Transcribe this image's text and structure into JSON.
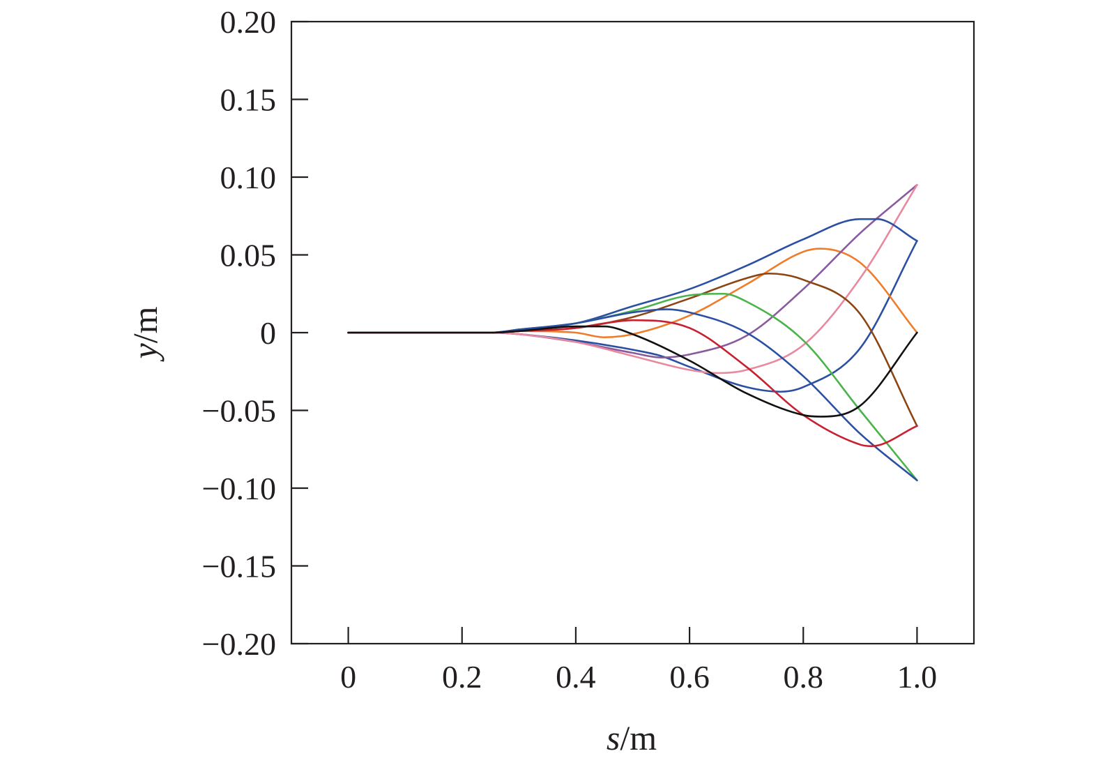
{
  "chart_data": {
    "type": "line",
    "xlabel": {
      "var": "s",
      "unit": "/m"
    },
    "ylabel": {
      "var": "y",
      "unit": "/m"
    },
    "xlim": [
      -0.1,
      1.1
    ],
    "ylim": [
      -0.2,
      0.2
    ],
    "xticks": [
      0,
      0.2,
      0.4,
      0.6,
      0.8,
      1.0
    ],
    "xtick_labels": [
      "0",
      "0.2",
      "0.4",
      "0.6",
      "0.8",
      "1.0"
    ],
    "yticks": [
      0.2,
      0.15,
      0.1,
      0.05,
      0,
      -0.05,
      -0.1,
      -0.15,
      -0.2
    ],
    "ytick_labels": [
      "0.20",
      "0.15",
      "0.10",
      "0.05",
      "0",
      "−0.05",
      "−0.10",
      "−0.15",
      "−0.20"
    ],
    "grid": false,
    "legend": "none",
    "series": [
      {
        "color": "#2b4fa2",
        "points": [
          [
            0,
            0
          ],
          [
            0.25,
            0
          ],
          [
            0.3,
            -0.001
          ],
          [
            0.4,
            -0.005
          ],
          [
            0.5,
            -0.011
          ],
          [
            0.55,
            -0.015
          ],
          [
            0.6,
            -0.022
          ],
          [
            0.7,
            -0.035
          ],
          [
            0.76,
            -0.038
          ],
          [
            0.8,
            -0.035
          ],
          [
            0.9,
            -0.01
          ],
          [
            1.0,
            0.059
          ]
        ]
      },
      {
        "color": "#f07c2a",
        "points": [
          [
            0,
            0
          ],
          [
            0.25,
            0
          ],
          [
            0.3,
            0.001
          ],
          [
            0.4,
            0.0
          ],
          [
            0.45,
            -0.003
          ],
          [
            0.5,
            -0.001
          ],
          [
            0.6,
            0.011
          ],
          [
            0.7,
            0.031
          ],
          [
            0.8,
            0.052
          ],
          [
            0.83,
            0.054
          ],
          [
            0.9,
            0.045
          ],
          [
            1.0,
            0.0
          ]
        ]
      },
      {
        "color": "#8a5a9e",
        "points": [
          [
            0,
            0
          ],
          [
            0.25,
            0
          ],
          [
            0.3,
            -0.001
          ],
          [
            0.4,
            -0.006
          ],
          [
            0.5,
            -0.013
          ],
          [
            0.55,
            -0.016
          ],
          [
            0.6,
            -0.014
          ],
          [
            0.7,
            -0.002
          ],
          [
            0.8,
            0.028
          ],
          [
            0.9,
            0.064
          ],
          [
            1.0,
            0.095
          ]
        ]
      },
      {
        "color": "#e8899f",
        "points": [
          [
            0,
            0
          ],
          [
            0.25,
            0
          ],
          [
            0.3,
            -0.001
          ],
          [
            0.4,
            -0.006
          ],
          [
            0.5,
            -0.015
          ],
          [
            0.6,
            -0.024
          ],
          [
            0.65,
            -0.026
          ],
          [
            0.7,
            -0.024
          ],
          [
            0.8,
            -0.008
          ],
          [
            0.9,
            0.035
          ],
          [
            1.0,
            0.095
          ]
        ]
      },
      {
        "color": "#2b4fa2",
        "points": [
          [
            0,
            0
          ],
          [
            0.25,
            0
          ],
          [
            0.3,
            0.002
          ],
          [
            0.4,
            0.006
          ],
          [
            0.5,
            0.017
          ],
          [
            0.6,
            0.028
          ],
          [
            0.7,
            0.043
          ],
          [
            0.8,
            0.06
          ],
          [
            0.9,
            0.073
          ],
          [
            0.93,
            0.073
          ],
          [
            1.0,
            0.059
          ]
        ]
      },
      {
        "color": "#8b4513",
        "points": [
          [
            0,
            0
          ],
          [
            0.25,
            0
          ],
          [
            0.3,
            0.001
          ],
          [
            0.4,
            0.003
          ],
          [
            0.5,
            0.01
          ],
          [
            0.6,
            0.022
          ],
          [
            0.7,
            0.035
          ],
          [
            0.74,
            0.038
          ],
          [
            0.8,
            0.034
          ],
          [
            0.9,
            0.012
          ],
          [
            1.0,
            -0.06
          ]
        ]
      },
      {
        "color": "#4bb34b",
        "points": [
          [
            0,
            0
          ],
          [
            0.25,
            0
          ],
          [
            0.3,
            0.002
          ],
          [
            0.4,
            0.006
          ],
          [
            0.5,
            0.014
          ],
          [
            0.6,
            0.024
          ],
          [
            0.66,
            0.025
          ],
          [
            0.7,
            0.02
          ],
          [
            0.8,
            -0.005
          ],
          [
            0.9,
            -0.05
          ],
          [
            1.0,
            -0.095
          ]
        ]
      },
      {
        "color": "#2b4fa2",
        "points": [
          [
            0,
            0
          ],
          [
            0.25,
            0
          ],
          [
            0.3,
            0.002
          ],
          [
            0.4,
            0.006
          ],
          [
            0.5,
            0.013
          ],
          [
            0.56,
            0.015
          ],
          [
            0.6,
            0.013
          ],
          [
            0.7,
            0.0
          ],
          [
            0.8,
            -0.028
          ],
          [
            0.9,
            -0.065
          ],
          [
            1.0,
            -0.095
          ]
        ]
      },
      {
        "color": "#c8202f",
        "points": [
          [
            0,
            0
          ],
          [
            0.25,
            0
          ],
          [
            0.3,
            0.001
          ],
          [
            0.4,
            0.003
          ],
          [
            0.45,
            0.006
          ],
          [
            0.5,
            0.008
          ],
          [
            0.6,
            0.003
          ],
          [
            0.7,
            -0.022
          ],
          [
            0.8,
            -0.053
          ],
          [
            0.9,
            -0.072
          ],
          [
            0.92,
            -0.073
          ],
          [
            1.0,
            -0.06
          ]
        ]
      },
      {
        "color": "#111111",
        "points": [
          [
            0,
            0
          ],
          [
            0.25,
            0
          ],
          [
            0.3,
            0.001
          ],
          [
            0.4,
            0.004
          ],
          [
            0.45,
            0.004
          ],
          [
            0.5,
            -0.001
          ],
          [
            0.6,
            -0.018
          ],
          [
            0.7,
            -0.039
          ],
          [
            0.8,
            -0.053
          ],
          [
            0.83,
            -0.054
          ],
          [
            0.9,
            -0.047
          ],
          [
            1.0,
            0.0
          ]
        ]
      }
    ]
  }
}
